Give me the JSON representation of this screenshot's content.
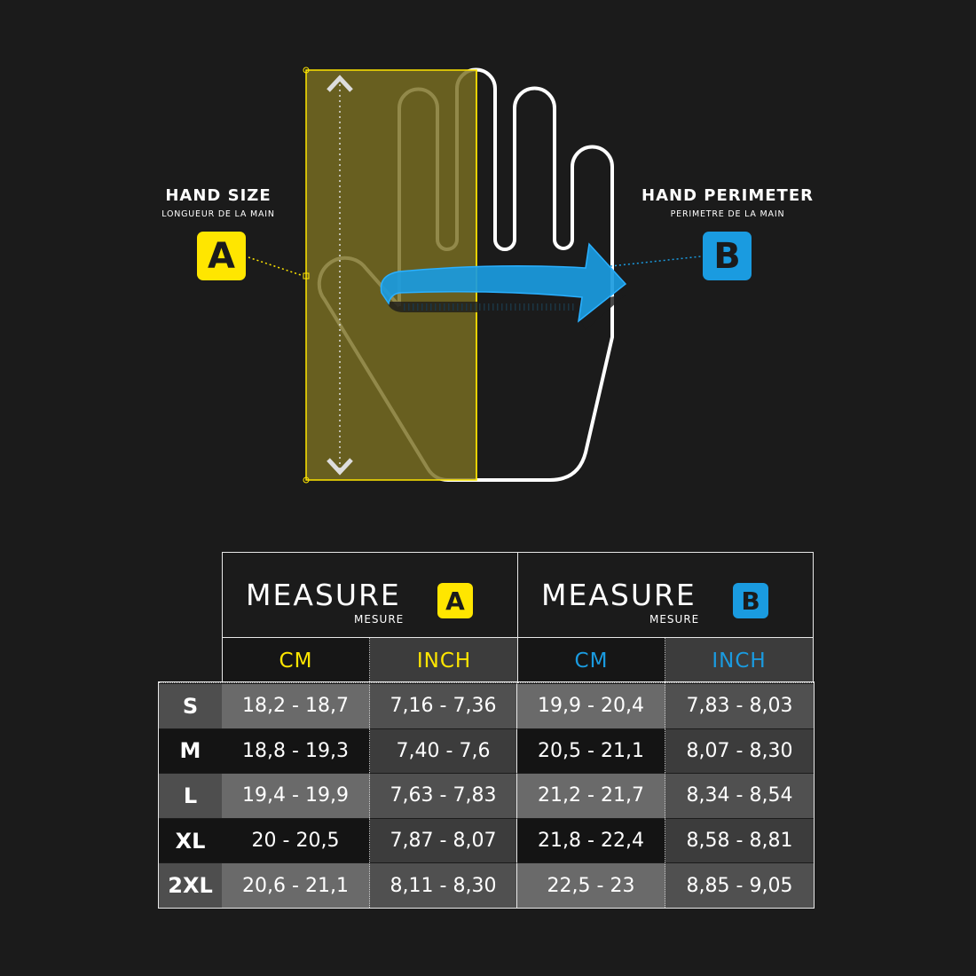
{
  "colors": {
    "background": "#1b1b1b",
    "measure_a": "#ffe600",
    "measure_b": "#1a9be0",
    "overlay": "#7a6f22"
  },
  "diagram": {
    "left_label": {
      "title": "HAND SIZE",
      "subtitle": "LONGUEUR DE LA MAIN",
      "badge": "A"
    },
    "right_label": {
      "title": "HAND PERIMETER",
      "subtitle": "PERIMETRE DE LA MAIN",
      "badge": "B"
    }
  },
  "table": {
    "groups": [
      {
        "title": "MEASURE",
        "subtitle": "MESURE",
        "badge": "A",
        "units": [
          "CM",
          "INCH"
        ]
      },
      {
        "title": "MEASURE",
        "subtitle": "MESURE",
        "badge": "B",
        "units": [
          "CM",
          "INCH"
        ]
      }
    ],
    "rows": [
      {
        "size": "S",
        "a_cm": "18,2 - 18,7",
        "a_inch": "7,16 - 7,36",
        "b_cm": "19,9 - 20,4",
        "b_inch": "7,83 - 8,03"
      },
      {
        "size": "M",
        "a_cm": "18,8 - 19,3",
        "a_inch": "7,40 - 7,6",
        "b_cm": "20,5 - 21,1",
        "b_inch": "8,07 - 8,30"
      },
      {
        "size": "L",
        "a_cm": "19,4 - 19,9",
        "a_inch": "7,63 - 7,83",
        "b_cm": "21,2 - 21,7",
        "b_inch": "8,34 - 8,54"
      },
      {
        "size": "XL",
        "a_cm": "20 - 20,5",
        "a_inch": "7,87 - 8,07",
        "b_cm": "21,8 - 22,4",
        "b_inch": "8,58 - 8,81"
      },
      {
        "size": "2XL",
        "a_cm": "20,6 - 21,1",
        "a_inch": "8,11 - 8,30",
        "b_cm": "22,5 - 23",
        "b_inch": "8,85 - 9,05"
      }
    ]
  }
}
